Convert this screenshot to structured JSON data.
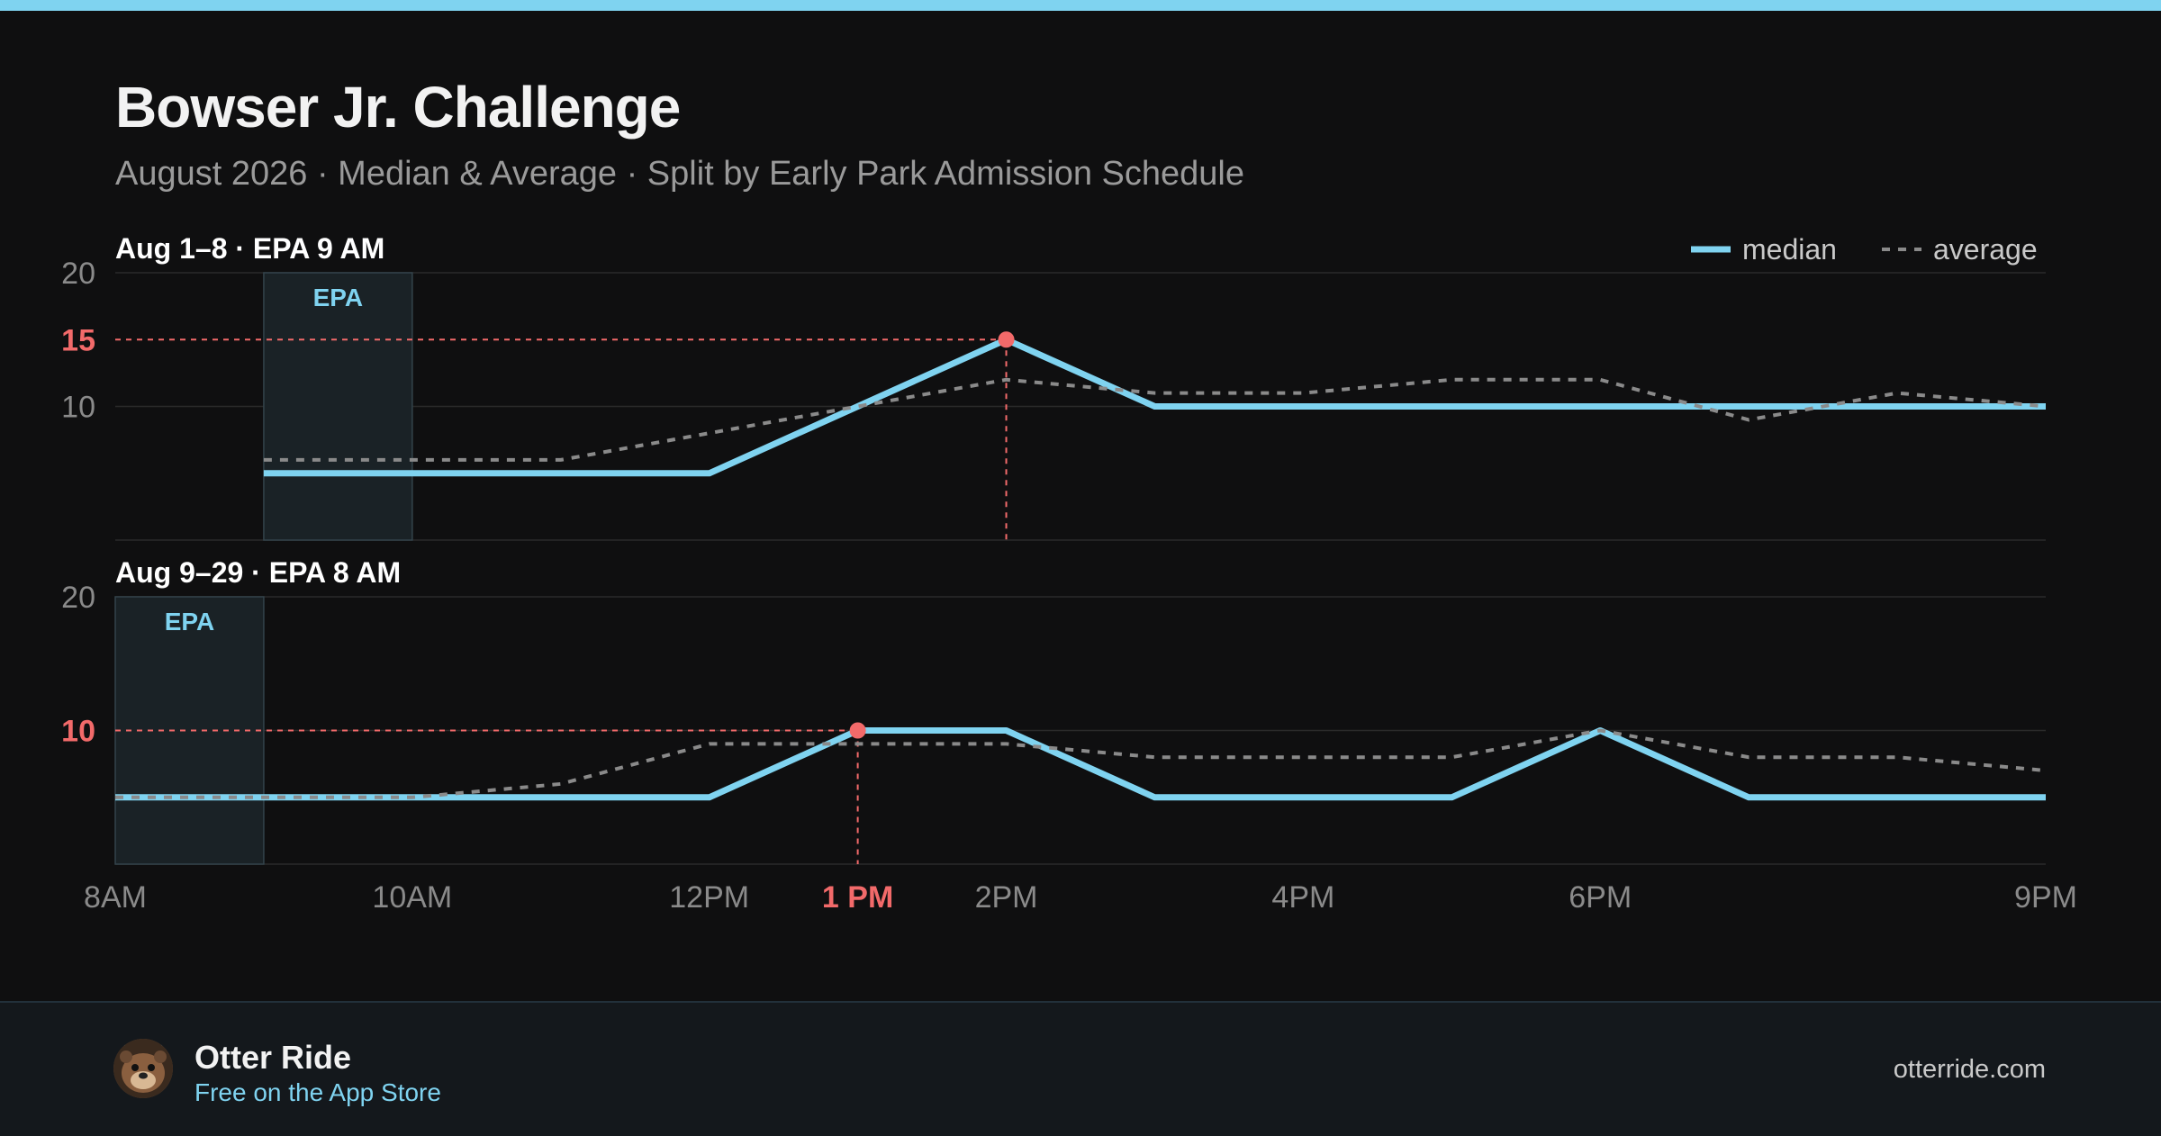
{
  "title": "Bowser Jr. Challenge",
  "subtitle": "August 2026 · Median & Average · Split by Early Park Admission Schedule",
  "footer": {
    "brand": "Otter Ride",
    "tagline": "Free on the App Store",
    "site": "otterride.com"
  },
  "colors": {
    "median": "#7fd3f0",
    "average": "#8a8a8a",
    "highlight": "#f26a6a",
    "epa_label": "#7fd3f0"
  },
  "chart_data": {
    "type": "line",
    "legend": {
      "placement": "top-right",
      "entries": [
        "median",
        "average"
      ]
    },
    "x_ticks": [
      "8AM",
      "10AM",
      "12PM",
      "2PM",
      "4PM",
      "6PM",
      "9PM"
    ],
    "x_range": [
      8,
      21
    ],
    "highlight_x": {
      "value": 13,
      "label": "1 PM"
    },
    "panels": [
      {
        "label": "Aug 1–8 · EPA 9 AM",
        "ylim": [
          0,
          20
        ],
        "y_ticks": [
          20,
          10
        ],
        "epa": {
          "label": "EPA",
          "start": 9,
          "end": 10
        },
        "peak": {
          "x": 14,
          "y": 15,
          "label": "15"
        },
        "series": [
          {
            "name": "median",
            "style": "solid",
            "x": [
              9,
              12,
              13,
              14,
              15,
              16,
              17,
              18,
              19,
              20,
              21
            ],
            "y": [
              5,
              5,
              10,
              15,
              10,
              10,
              10,
              10,
              10,
              10,
              10
            ]
          },
          {
            "name": "average",
            "style": "dashed",
            "x": [
              9,
              10,
              11,
              12,
              13,
              14,
              15,
              16,
              17,
              18,
              19,
              20,
              21
            ],
            "y": [
              6,
              6,
              6,
              8,
              10,
              12,
              11,
              11,
              12,
              12,
              9,
              11,
              10
            ]
          }
        ]
      },
      {
        "label": "Aug 9–29 · EPA 8 AM",
        "ylim": [
          0,
          20
        ],
        "y_ticks": [
          20
        ],
        "epa": {
          "label": "EPA",
          "start": 8,
          "end": 9
        },
        "peak": {
          "x": 13,
          "y": 10,
          "label": "10"
        },
        "series": [
          {
            "name": "median",
            "style": "solid",
            "x": [
              8,
              12,
              13,
              14,
              15,
              16,
              17,
              18,
              19,
              20,
              21
            ],
            "y": [
              5,
              5,
              10,
              10,
              5,
              5,
              5,
              10,
              5,
              5,
              5
            ]
          },
          {
            "name": "average",
            "style": "dashed",
            "x": [
              8,
              10,
              11,
              12,
              13,
              14,
              15,
              16,
              17,
              18,
              19,
              20,
              21
            ],
            "y": [
              5,
              5,
              6,
              9,
              9,
              9,
              8,
              8,
              8,
              10,
              8,
              8,
              7
            ]
          }
        ]
      }
    ]
  }
}
